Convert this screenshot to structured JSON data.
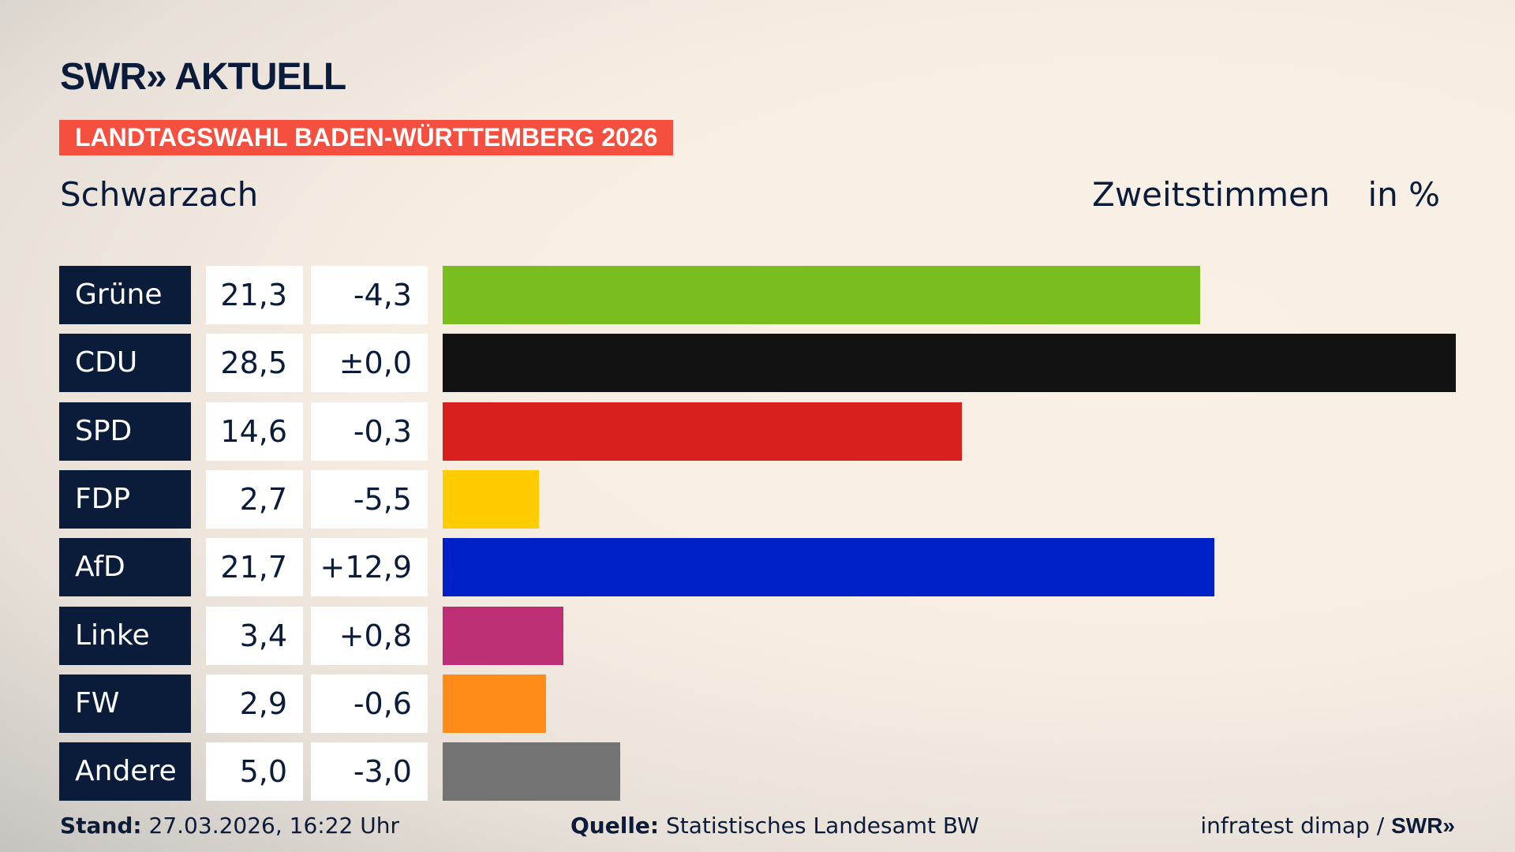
{
  "header": {
    "logo": "SWR» AKTUELL",
    "banner": "LANDTAGSWAHL BADEN-WÜRTTEMBERG 2026",
    "place": "Schwarzach",
    "metric": "Zweitstimmen",
    "unit": "in %"
  },
  "chart_data": {
    "type": "bar",
    "orientation": "horizontal",
    "title": "Schwarzach",
    "categories": [
      "Grüne",
      "CDU",
      "SPD",
      "FDP",
      "AfD",
      "Linke",
      "FW",
      "Andere"
    ],
    "values": [
      21.3,
      28.5,
      14.6,
      2.7,
      21.7,
      3.4,
      2.9,
      5.0
    ],
    "value_labels": [
      "21,3",
      "28,5",
      "14,6",
      "2,7",
      "21,7",
      "3,4",
      "2,9",
      "5,0"
    ],
    "diff_labels": [
      "-4,3",
      "±0,0",
      "-0,3",
      "-5,5",
      "+12,9",
      "+0,8",
      "-0,6",
      "-3,0"
    ],
    "diffs": [
      -4.3,
      0.0,
      -0.3,
      -5.5,
      12.9,
      0.8,
      -0.6,
      -3.0
    ],
    "colors": [
      "#7abd1e",
      "#121212",
      "#d8201f",
      "#ffcc00",
      "#0021c8",
      "#be3075",
      "#ff8c18",
      "#737373"
    ],
    "xlim": [
      0,
      28.5
    ],
    "grid": false
  },
  "footer": {
    "stand_label": "Stand:",
    "stand_value": "27.03.2026, 16:22 Uhr",
    "source_label": "Quelle:",
    "source_value": "Statistisches Landesamt BW",
    "credit": "infratest dimap / ",
    "credit_logo": "SWR»"
  }
}
